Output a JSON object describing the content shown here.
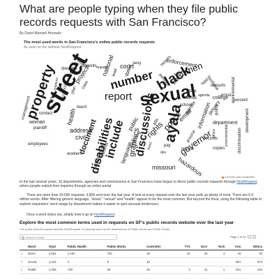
{
  "headline": "What are people typing when they file public records requests with San Francisco?",
  "byline": "By David Mamaril Horowitz",
  "chart": {
    "title": "The most used words in San Francisco’s online public records requests",
    "subtitle": "As seen on the website NextRequest",
    "credit": "A Flourish data visualization",
    "accent_color": "#e8632b",
    "words": [
      "street",
      "sexual",
      "property",
      "black",
      "number",
      "report",
      "include",
      "disabilities",
      "ayala",
      "discussions",
      "graphics",
      "governor",
      "missouri",
      "hazardous",
      "document",
      "women",
      "police",
      "employees",
      "address",
      "civil",
      "enforcement",
      "january",
      "records",
      "information",
      "school",
      "email",
      "rights",
      "fire",
      "public",
      "health",
      "plaintiff",
      "woman",
      "contact",
      "management",
      "dated",
      "project",
      "court",
      "national",
      "victims",
      "agreement",
      "workers",
      "permits",
      "language",
      "murder",
      "rescue",
      "college",
      "department",
      "discrimination",
      "environmental",
      "policy",
      "development",
      "lawsuits",
      "percent",
      "directive",
      "orders",
      "relations",
      "council",
      "date",
      "sense",
      "request",
      "case",
      "residents",
      "reports",
      "arizona",
      "students",
      "lapd",
      "arrest",
      "facebook",
      "teach",
      "copies",
      "reporting",
      "plan",
      "lead",
      "sexy",
      "ada",
      "pay",
      "ethics",
      "bond",
      "dev",
      "environmental",
      "agenda",
      "students"
    ]
  },
  "intro": {
    "p1_before": "In the last several years, 15 departments, agencies and commissions in San Francisco have begun to direct public records requests through ",
    "p1_link": "NextRequest",
    "p1_after": ", where people submit their inquiries through an online portal.",
    "p2": "There are more than 20,000 requests, 3,800 sent over the last year. A look at every request over the last year pulls up plenty of trivia. There are 5.4 million words. After filtering generic language, “street,” “sexual” and “health” appear to be the most common. But beyond the trivia, using the following table to explore requesters’ word usage by department makes it easier to spot unusual tendencies.",
    "p3_before": "Once a word sticks out, simply look it up on ",
    "p3_link": "NextRequest",
    "p3_after": "."
  },
  "table": {
    "title": "Explore the most common terms used in requests on SF’s public records website over the last year",
    "subtitle": "The public records request website, NextRequest, is primarily used by the departments of Public Works and Public Health.",
    "search_placeholder": "Search in table",
    "page_label": "Page 1 of 31",
    "prev_icon": "‹",
    "next_icon": "›",
    "columns": [
      "",
      "Word",
      "Total",
      "Public Health",
      "Public Works",
      "Controller",
      "TTX",
      "OCA",
      "Tech",
      "Arts",
      "Ethics"
    ],
    "rows": [
      [
        "1",
        "street",
        "2,051",
        "1,191",
        "703",
        "29",
        "42",
        "20",
        "4",
        "23",
        "30"
      ],
      [
        "2",
        "sexual",
        "1,344",
        "3",
        "8",
        "10",
        "",
        "",
        "",
        "651",
        "672"
      ],
      [
        "3",
        "health",
        "1,306",
        "728",
        "40",
        "26",
        "2",
        "12",
        "1",
        "261",
        "234"
      ]
    ]
  }
}
